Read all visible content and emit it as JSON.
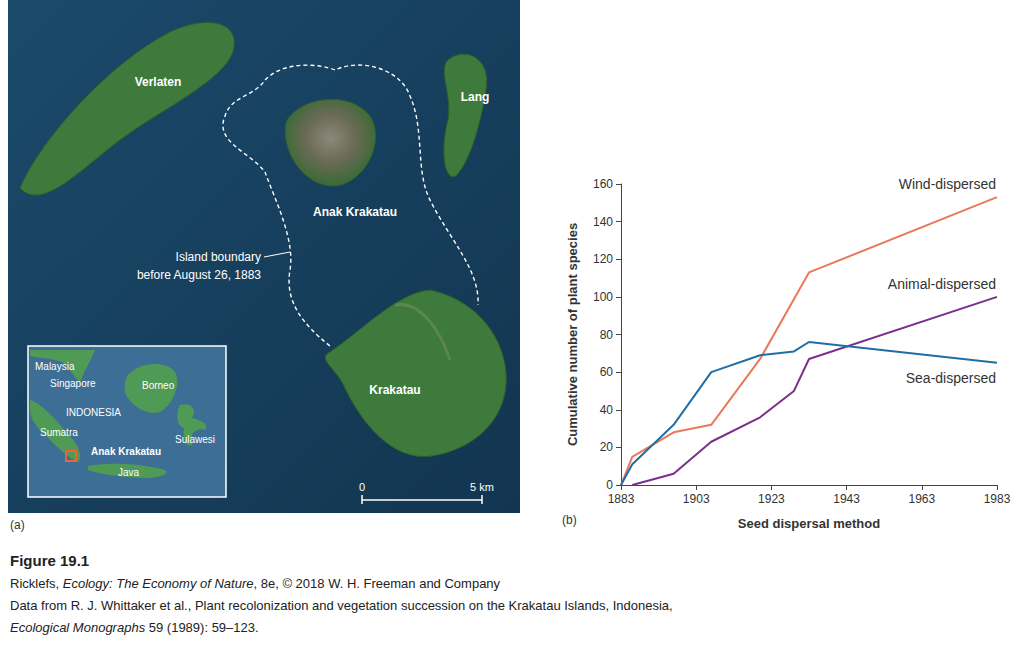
{
  "chart_data": {
    "type": "line",
    "x_label": "Seed dispersal method",
    "y_label": "Cumulative number of plant species",
    "xlim": [
      1883,
      1983
    ],
    "xticks": [
      1883,
      1903,
      1923,
      1943,
      1963,
      1983
    ],
    "ylim": [
      0,
      160
    ],
    "yticks": [
      0,
      20,
      40,
      60,
      80,
      100,
      120,
      140,
      160
    ],
    "grid": false,
    "series": [
      {
        "name": "Wind-dispersed",
        "color": "#e8795a",
        "x": [
          1883,
          1886,
          1897,
          1907,
          1920,
          1933,
          1983
        ],
        "values": [
          0,
          15,
          28,
          32,
          67,
          113,
          153
        ]
      },
      {
        "name": "Animal-dispersed",
        "color": "#7b2f8c",
        "x": [
          1886,
          1897,
          1907,
          1920,
          1929,
          1933,
          1983
        ],
        "values": [
          0,
          6,
          23,
          36,
          50,
          67,
          100
        ]
      },
      {
        "name": "Sea-dispersed",
        "color": "#1f6fa6",
        "x": [
          1883,
          1886,
          1897,
          1907,
          1920,
          1929,
          1933,
          1983
        ],
        "values": [
          0,
          11,
          32,
          60,
          69,
          71,
          76,
          65
        ]
      }
    ]
  },
  "panel_labels": [
    "(a)",
    "(b)"
  ],
  "map": {
    "islands": [
      "Verlaten",
      "Lang",
      "Anak Krakatau",
      "Krakatau"
    ],
    "boundary_label": [
      "Island boundary",
      "before August 26, 1883"
    ],
    "inset_labels": [
      "Malaysia",
      "Singapore",
      "Borneo",
      "INDONESIA",
      "Sumatra",
      "Anak Krakatau",
      "Sulawesi",
      "Java"
    ],
    "scale_labels": [
      "0",
      "5 km"
    ]
  },
  "caption": [
    [
      {
        "text": "Figure 19.1",
        "bold": true
      }
    ],
    [
      {
        "text": "Ricklefs, "
      },
      {
        "text": "Ecology: The Economy of Nature",
        "italic": true
      },
      {
        "text": ", 8e, © 2018 W. H. Freeman and Company"
      }
    ],
    [
      {
        "text": "Data from R. J. Whittaker et al., Plant recolonization and vegetation succession on the Krakatau Islands, Indonesia,"
      }
    ],
    [
      {
        "text": "Ecological Monographs",
        "italic": true
      },
      {
        "text": " 59 (1989): 59–123."
      }
    ]
  ]
}
